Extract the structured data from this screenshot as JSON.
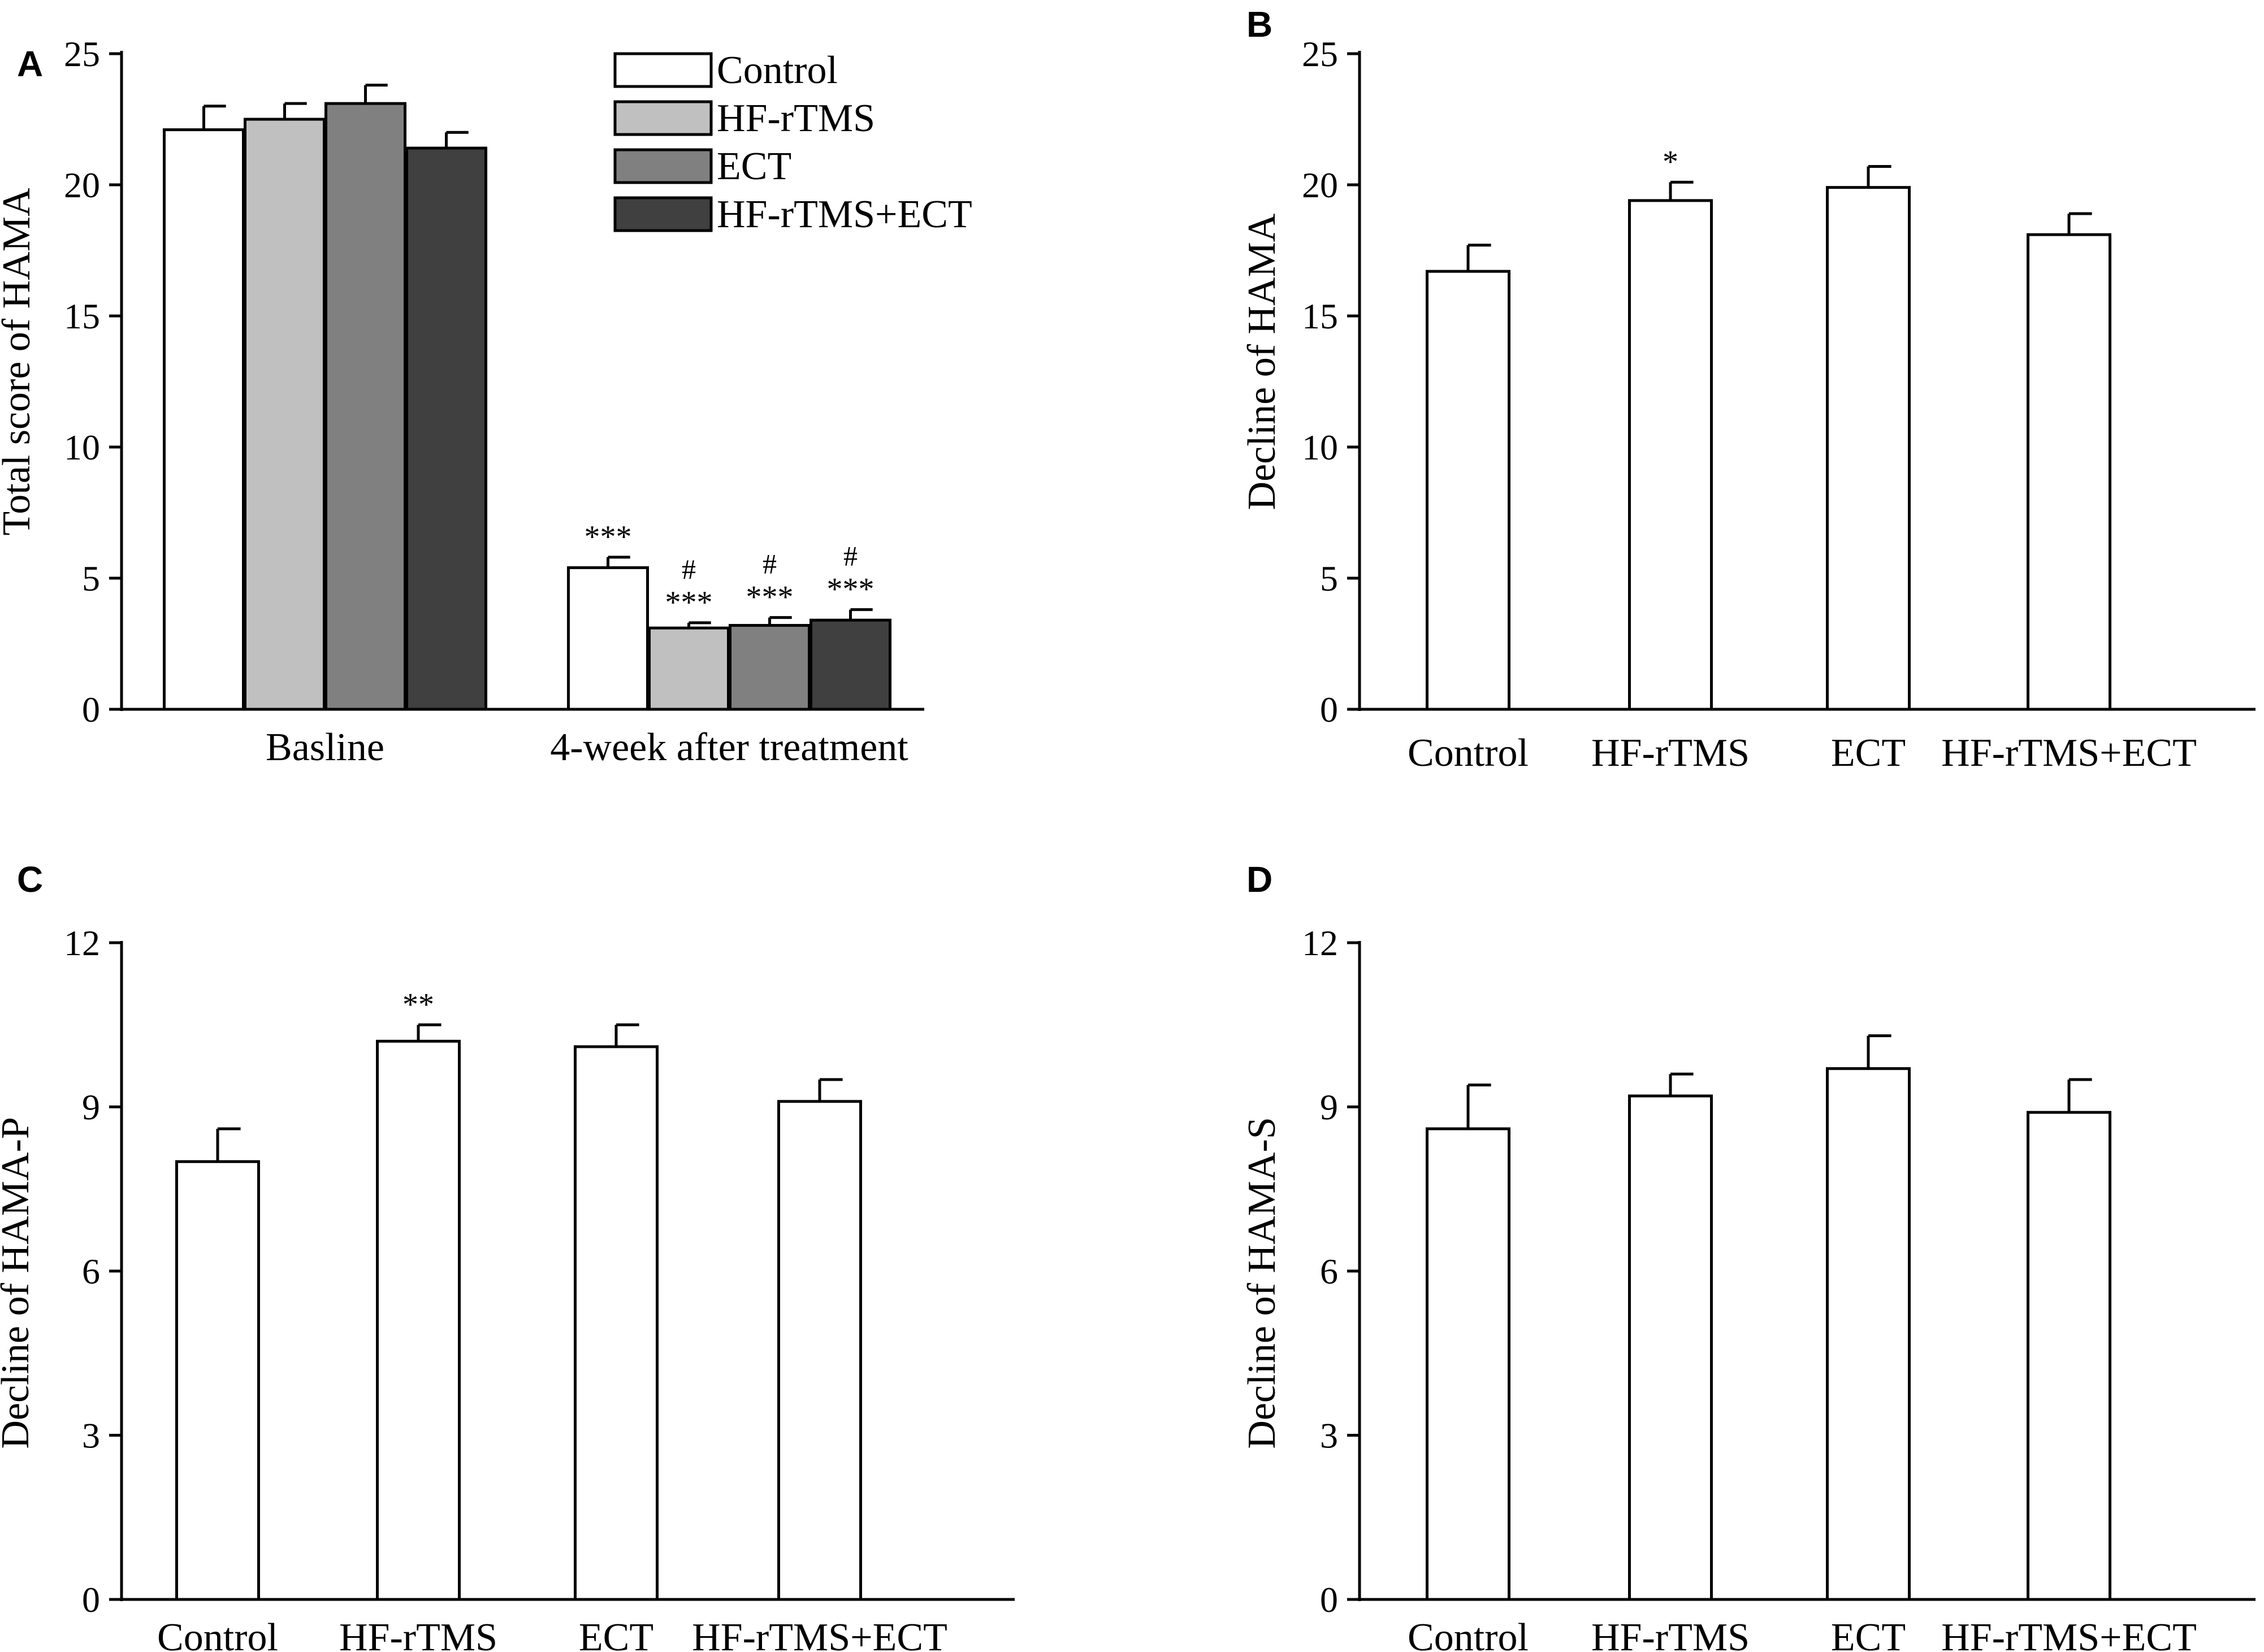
{
  "colors": {
    "control": "#ffffff",
    "hf_rtms": "#c0c0c0",
    "ect": "#808080",
    "combo": "#404040",
    "axis": "#000000"
  },
  "chart_data": [
    {
      "panel": "A",
      "type": "bar",
      "title": "",
      "xlabel": "",
      "ylabel": "Total score of HAMA",
      "ylim": [
        0,
        25
      ],
      "yticks": [
        "0",
        "5",
        "10",
        "15",
        "20",
        "25"
      ],
      "categories": [
        "Basline",
        "4-week after treatment"
      ],
      "legend": {
        "position": "top-right",
        "entries": [
          "Control",
          "HF-rTMS",
          "ECT",
          "HF-rTMS+ECT"
        ]
      },
      "series": [
        {
          "name": "Control",
          "values": [
            22.1,
            5.4
          ],
          "errors": [
            0.9,
            0.4
          ],
          "annotations": [
            "",
            "***"
          ]
        },
        {
          "name": "HF-rTMS",
          "values": [
            22.5,
            3.1
          ],
          "errors": [
            0.6,
            0.2
          ],
          "annotations": [
            "",
            "#\n***"
          ]
        },
        {
          "name": "ECT",
          "values": [
            23.1,
            3.2
          ],
          "errors": [
            0.7,
            0.3
          ],
          "annotations": [
            "",
            "#\n***"
          ]
        },
        {
          "name": "HF-rTMS+ECT",
          "values": [
            21.4,
            3.4
          ],
          "errors": [
            0.6,
            0.4
          ],
          "annotations": [
            "",
            "#\n***"
          ]
        }
      ]
    },
    {
      "panel": "B",
      "type": "bar",
      "title": "",
      "xlabel": "",
      "ylabel": "Decline of HAMA",
      "ylim": [
        0,
        25
      ],
      "yticks": [
        "0",
        "5",
        "10",
        "15",
        "20",
        "25"
      ],
      "categories": [
        "Control",
        "HF-rTMS",
        "ECT",
        "HF-rTMS+ECT"
      ],
      "values": [
        16.7,
        19.4,
        19.9,
        18.1
      ],
      "errors": [
        1.0,
        0.7,
        0.8,
        0.8
      ],
      "annotations": [
        "",
        "*",
        "",
        ""
      ]
    },
    {
      "panel": "C",
      "type": "bar",
      "title": "",
      "xlabel": "",
      "ylabel": "Decline of HAMA-P",
      "ylim": [
        0,
        12
      ],
      "yticks": [
        "0",
        "3",
        "6",
        "9",
        "12"
      ],
      "categories": [
        "Control",
        "HF-rTMS",
        "ECT",
        "HF-rTMS+ECT"
      ],
      "values": [
        8.0,
        10.2,
        10.1,
        9.1
      ],
      "errors": [
        0.6,
        0.3,
        0.4,
        0.4
      ],
      "annotations": [
        "",
        "**",
        "",
        ""
      ]
    },
    {
      "panel": "D",
      "type": "bar",
      "title": "",
      "xlabel": "",
      "ylabel": "Decline of HAMA-S",
      "ylim": [
        0,
        12
      ],
      "yticks": [
        "0",
        "3",
        "6",
        "9",
        "12"
      ],
      "categories": [
        "Control",
        "HF-rTMS",
        "ECT",
        "HF-rTMS+ECT"
      ],
      "values": [
        8.6,
        9.2,
        9.7,
        8.9
      ],
      "errors": [
        0.8,
        0.4,
        0.6,
        0.6
      ],
      "annotations": [
        "",
        "",
        "",
        ""
      ]
    }
  ]
}
